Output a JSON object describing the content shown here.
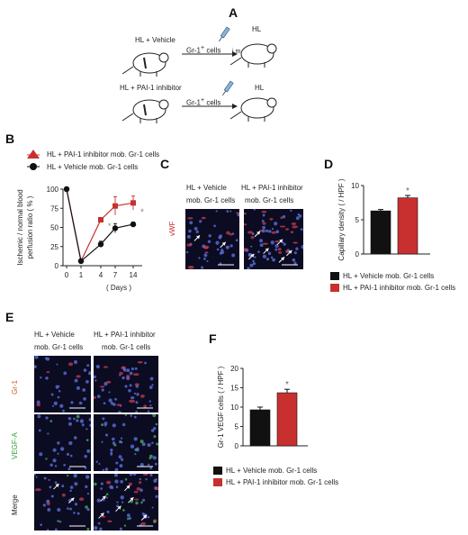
{
  "panels": {
    "A": {
      "letter": "A",
      "top": {
        "left_label": "HL + Vehicle",
        "arrow_label": "Gr-1",
        "arrow_sup": "+",
        "arrow_suffix": " cells",
        "right_label": "HL",
        "injection_label": "i.m"
      },
      "bottom": {
        "left_label": "HL + PAI-1 inhibitor",
        "arrow_label": "Gr-1",
        "arrow_sup": "+",
        "arrow_suffix": " cells",
        "right_label": "HL"
      }
    },
    "B": {
      "letter": "B",
      "legend": [
        {
          "text": "HL  + PAI-1 inhibitor mob. Gr-1 cells",
          "color": "#c8302f",
          "marker": "triangle"
        },
        {
          "text": "HL  + Vehicle mob. Gr-1 cells",
          "color": "#111111",
          "marker": "circle"
        }
      ],
      "significance": "*"
    },
    "C": {
      "letter": "C",
      "col1_line1": "HL  + Vehicle",
      "col1_line2": "mob. Gr-1 cells",
      "col2_line1": "HL  + PAI-1 inhibitor",
      "col2_line2": "mob. Gr-1 cells",
      "stain": "vWF"
    },
    "D": {
      "letter": "D",
      "significance": "*",
      "legend": [
        {
          "text": "HL  + Vehicle mob. Gr-1 cells",
          "color": "#111111"
        },
        {
          "text": "HL  + PAI-1 inhibitor mob. Gr-1 cells",
          "color": "#c8302f"
        }
      ]
    },
    "E": {
      "letter": "E",
      "col1_line1": "HL  + Vehicle",
      "col1_line2": "mob. Gr-1 cells",
      "col2_line1": "HL  + PAI-1 inhibitor",
      "col2_line2": "mob. Gr-1 cells",
      "rows": [
        {
          "label": "Gr-1",
          "color": "#c8602f"
        },
        {
          "label": "VEGF-A",
          "color": "#3aa040"
        },
        {
          "label": "Merge",
          "color": "#222222"
        }
      ]
    },
    "F": {
      "letter": "F",
      "significance": "*",
      "legend": [
        {
          "text": "HL  + Vehicle mob. Gr-1 cells",
          "color": "#111111"
        },
        {
          "text": "HL  + PAI-1 inhibitor mob. Gr-1 cells",
          "color": "#c8302f"
        }
      ]
    }
  },
  "chart_data": [
    {
      "id": "B",
      "type": "line",
      "x": [
        0,
        1,
        4,
        7,
        14
      ],
      "xticks": [
        "0",
        "1",
        "4",
        "7",
        "14"
      ],
      "xlabel": "( Days )",
      "ylabel_line1": "Ischemic / normal blood",
      "ylabel_line2": "perfusion ratio  ( % )",
      "ylim": [
        0,
        100
      ],
      "yticks": [
        0,
        25,
        50,
        75,
        100
      ],
      "series": [
        {
          "name": "HL  + PAI-1 inhibitor mob. Gr-1 cells",
          "color": "#c8302f",
          "values": [
            100,
            6,
            60,
            78,
            82
          ],
          "errors": [
            0,
            0,
            0,
            12,
            9
          ]
        },
        {
          "name": "HL  + Vehicle mob. Gr-1 cells",
          "color": "#111111",
          "values": [
            100,
            6,
            28,
            49,
            54
          ],
          "errors": [
            0,
            0,
            4,
            6,
            3
          ]
        }
      ]
    },
    {
      "id": "D",
      "type": "bar",
      "categories": [
        "HL  + Vehicle mob. Gr-1 cells",
        "HL  + PAI-1 inhibitor mob. Gr-1 cells"
      ],
      "values": [
        6.3,
        8.2
      ],
      "errors": [
        0.2,
        0.35
      ],
      "colors": [
        "#111111",
        "#c8302f"
      ],
      "ylabel": "Capillary density  ( / HPF )",
      "ylim": [
        0,
        10
      ],
      "yticks": [
        0,
        5,
        10
      ]
    },
    {
      "id": "F",
      "type": "bar",
      "categories": [
        "HL  + Vehicle mob. Gr-1 cells",
        "HL  + PAI-1 inhibitor mob. Gr-1 cells"
      ],
      "values": [
        9.3,
        13.7
      ],
      "errors": [
        0.7,
        0.9
      ],
      "colors": [
        "#111111",
        "#c8302f"
      ],
      "ylabel": "Gr-1 VEGF cells  ( / HPF )",
      "ylim": [
        0,
        20
      ],
      "yticks": [
        0,
        5,
        10,
        15,
        20
      ]
    }
  ]
}
